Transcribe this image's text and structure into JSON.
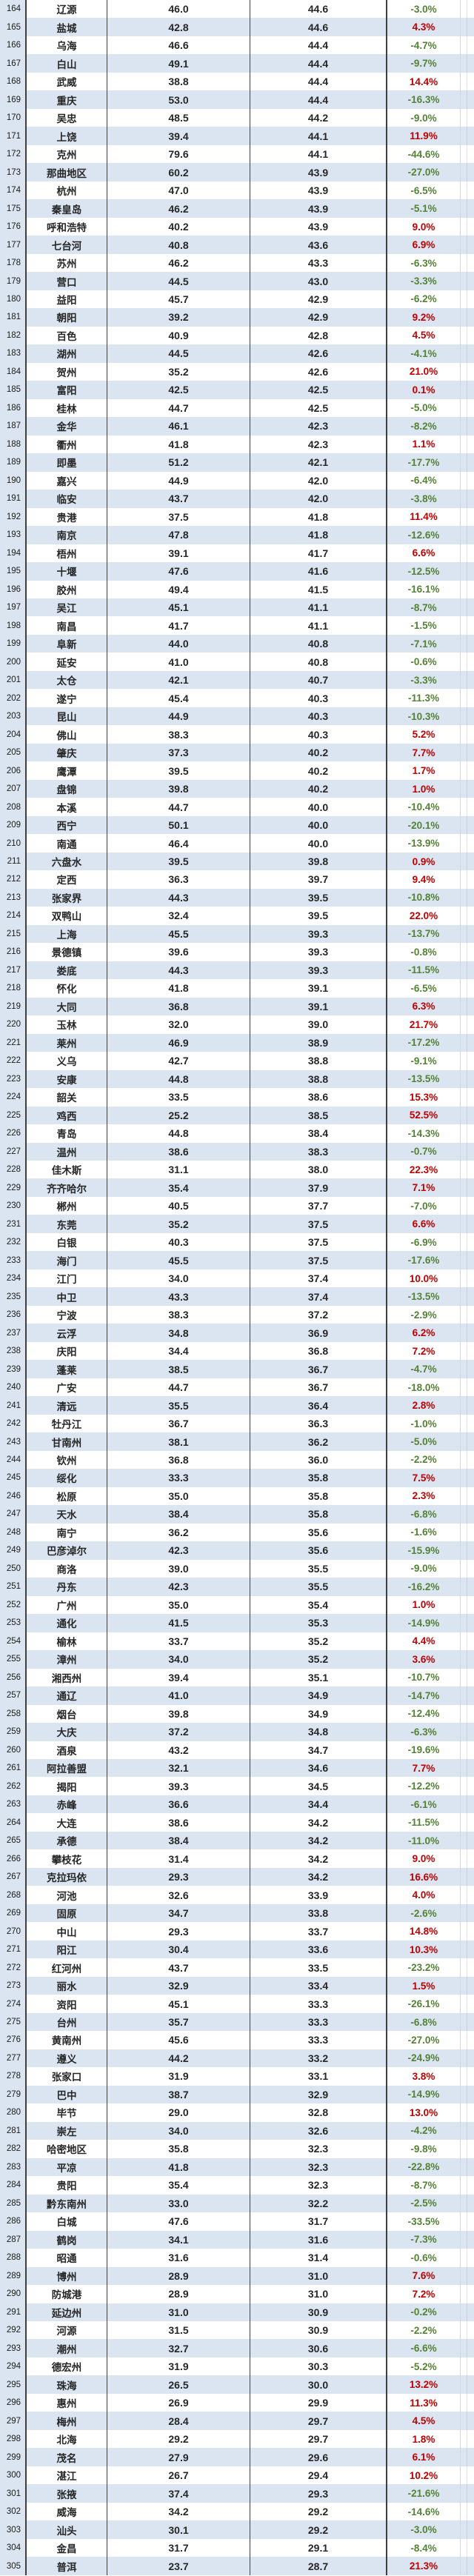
{
  "table": {
    "description_fields": [
      "rank",
      "city",
      "value_current",
      "value_baseline",
      "change_pct"
    ],
    "colors": {
      "band_blue": "#dbe5f1",
      "row_white": "#ffffff",
      "positive_change_red": "#c00000",
      "negative_change_green": "#548235",
      "column_border_dark": "#3f3f3f",
      "text_dark": "#262626"
    },
    "rows": [
      [
        164,
        "辽源",
        "46.0",
        "44.6",
        "-3.0%"
      ],
      [
        165,
        "盐城",
        "42.8",
        "44.6",
        "4.3%"
      ],
      [
        166,
        "乌海",
        "46.6",
        "44.4",
        "-4.7%"
      ],
      [
        167,
        "白山",
        "49.1",
        "44.4",
        "-9.7%"
      ],
      [
        168,
        "武威",
        "38.8",
        "44.4",
        "14.4%"
      ],
      [
        169,
        "重庆",
        "53.0",
        "44.4",
        "-16.3%"
      ],
      [
        170,
        "吴忠",
        "48.5",
        "44.2",
        "-9.0%"
      ],
      [
        171,
        "上饶",
        "39.4",
        "44.1",
        "11.9%"
      ],
      [
        172,
        "克州",
        "79.6",
        "44.1",
        "-44.6%"
      ],
      [
        173,
        "那曲地区",
        "60.2",
        "43.9",
        "-27.0%"
      ],
      [
        174,
        "杭州",
        "47.0",
        "43.9",
        "-6.5%"
      ],
      [
        175,
        "秦皇岛",
        "46.2",
        "43.9",
        "-5.1%"
      ],
      [
        176,
        "呼和浩特",
        "40.2",
        "43.9",
        "9.0%"
      ],
      [
        177,
        "七台河",
        "40.8",
        "43.6",
        "6.9%"
      ],
      [
        178,
        "苏州",
        "46.2",
        "43.3",
        "-6.3%"
      ],
      [
        179,
        "营口",
        "44.5",
        "43.0",
        "-3.3%"
      ],
      [
        180,
        "益阳",
        "45.7",
        "42.9",
        "-6.2%"
      ],
      [
        181,
        "朝阳",
        "39.2",
        "42.9",
        "9.2%"
      ],
      [
        182,
        "百色",
        "40.9",
        "42.8",
        "4.5%"
      ],
      [
        183,
        "湖州",
        "44.5",
        "42.6",
        "-4.1%"
      ],
      [
        184,
        "贺州",
        "35.2",
        "42.6",
        "21.0%"
      ],
      [
        185,
        "富阳",
        "42.5",
        "42.5",
        "0.1%"
      ],
      [
        186,
        "桂林",
        "44.7",
        "42.5",
        "-5.0%"
      ],
      [
        187,
        "金华",
        "46.1",
        "42.3",
        "-8.2%"
      ],
      [
        188,
        "衢州",
        "41.8",
        "42.3",
        "1.1%"
      ],
      [
        189,
        "即墨",
        "51.2",
        "42.1",
        "-17.7%"
      ],
      [
        190,
        "嘉兴",
        "44.9",
        "42.0",
        "-6.4%"
      ],
      [
        191,
        "临安",
        "43.7",
        "42.0",
        "-3.8%"
      ],
      [
        192,
        "贵港",
        "37.5",
        "41.8",
        "11.4%"
      ],
      [
        193,
        "南京",
        "47.8",
        "41.8",
        "-12.6%"
      ],
      [
        194,
        "梧州",
        "39.1",
        "41.7",
        "6.6%"
      ],
      [
        195,
        "十堰",
        "47.6",
        "41.6",
        "-12.5%"
      ],
      [
        196,
        "胶州",
        "49.4",
        "41.5",
        "-16.1%"
      ],
      [
        197,
        "吴江",
        "45.1",
        "41.1",
        "-8.7%"
      ],
      [
        198,
        "南昌",
        "41.7",
        "41.1",
        "-1.5%"
      ],
      [
        199,
        "阜新",
        "44.0",
        "40.8",
        "-7.1%"
      ],
      [
        200,
        "延安",
        "41.0",
        "40.8",
        "-0.6%"
      ],
      [
        201,
        "太仓",
        "42.1",
        "40.7",
        "-3.3%"
      ],
      [
        202,
        "遂宁",
        "45.4",
        "40.3",
        "-11.3%"
      ],
      [
        203,
        "昆山",
        "44.9",
        "40.3",
        "-10.3%"
      ],
      [
        204,
        "佛山",
        "38.3",
        "40.3",
        "5.2%"
      ],
      [
        205,
        "肇庆",
        "37.3",
        "40.2",
        "7.7%"
      ],
      [
        206,
        "鹰潭",
        "39.5",
        "40.2",
        "1.7%"
      ],
      [
        207,
        "盘锦",
        "39.8",
        "40.2",
        "1.0%"
      ],
      [
        208,
        "本溪",
        "44.7",
        "40.0",
        "-10.4%"
      ],
      [
        209,
        "西宁",
        "50.1",
        "40.0",
        "-20.1%"
      ],
      [
        210,
        "南通",
        "46.4",
        "40.0",
        "-13.9%"
      ],
      [
        211,
        "六盘水",
        "39.5",
        "39.8",
        "0.9%"
      ],
      [
        212,
        "定西",
        "36.3",
        "39.7",
        "9.4%"
      ],
      [
        213,
        "张家界",
        "44.3",
        "39.5",
        "-10.8%"
      ],
      [
        214,
        "双鸭山",
        "32.4",
        "39.5",
        "22.0%"
      ],
      [
        215,
        "上海",
        "45.5",
        "39.3",
        "-13.7%"
      ],
      [
        216,
        "景德镇",
        "39.6",
        "39.3",
        "-0.8%"
      ],
      [
        217,
        "娄底",
        "44.3",
        "39.3",
        "-11.5%"
      ],
      [
        218,
        "怀化",
        "41.8",
        "39.1",
        "-6.5%"
      ],
      [
        219,
        "大同",
        "36.8",
        "39.1",
        "6.3%"
      ],
      [
        220,
        "玉林",
        "32.0",
        "39.0",
        "21.7%"
      ],
      [
        221,
        "莱州",
        "46.9",
        "38.9",
        "-17.2%"
      ],
      [
        222,
        "义乌",
        "42.7",
        "38.8",
        "-9.1%"
      ],
      [
        223,
        "安康",
        "44.8",
        "38.8",
        "-13.5%"
      ],
      [
        224,
        "韶关",
        "33.5",
        "38.6",
        "15.3%"
      ],
      [
        225,
        "鸡西",
        "25.2",
        "38.5",
        "52.5%"
      ],
      [
        226,
        "青岛",
        "44.8",
        "38.4",
        "-14.3%"
      ],
      [
        227,
        "温州",
        "38.6",
        "38.3",
        "-0.7%"
      ],
      [
        228,
        "佳木斯",
        "31.1",
        "38.0",
        "22.3%"
      ],
      [
        229,
        "齐齐哈尔",
        "35.4",
        "37.9",
        "7.1%"
      ],
      [
        230,
        "郴州",
        "40.5",
        "37.7",
        "-7.0%"
      ],
      [
        231,
        "东莞",
        "35.2",
        "37.5",
        "6.6%"
      ],
      [
        232,
        "白银",
        "40.3",
        "37.5",
        "-6.9%"
      ],
      [
        233,
        "海门",
        "45.5",
        "37.5",
        "-17.6%"
      ],
      [
        234,
        "江门",
        "34.0",
        "37.4",
        "10.0%"
      ],
      [
        235,
        "中卫",
        "43.3",
        "37.4",
        "-13.5%"
      ],
      [
        236,
        "宁波",
        "38.3",
        "37.2",
        "-2.9%"
      ],
      [
        237,
        "云浮",
        "34.8",
        "36.9",
        "6.2%"
      ],
      [
        238,
        "庆阳",
        "34.4",
        "36.8",
        "7.2%"
      ],
      [
        239,
        "蓬莱",
        "38.5",
        "36.7",
        "-4.7%"
      ],
      [
        240,
        "广安",
        "44.7",
        "36.7",
        "-18.0%"
      ],
      [
        241,
        "清远",
        "35.5",
        "36.4",
        "2.8%"
      ],
      [
        242,
        "牡丹江",
        "36.7",
        "36.3",
        "-1.0%"
      ],
      [
        243,
        "甘南州",
        "38.1",
        "36.2",
        "-5.0%"
      ],
      [
        244,
        "钦州",
        "36.8",
        "36.0",
        "-2.2%"
      ],
      [
        245,
        "绥化",
        "33.3",
        "35.8",
        "7.5%"
      ],
      [
        246,
        "松原",
        "35.0",
        "35.8",
        "2.3%"
      ],
      [
        247,
        "天水",
        "38.4",
        "35.8",
        "-6.8%"
      ],
      [
        248,
        "南宁",
        "36.2",
        "35.6",
        "-1.6%"
      ],
      [
        249,
        "巴彦淖尔",
        "42.3",
        "35.6",
        "-15.9%"
      ],
      [
        250,
        "商洛",
        "39.0",
        "35.5",
        "-9.0%"
      ],
      [
        251,
        "丹东",
        "42.3",
        "35.5",
        "-16.2%"
      ],
      [
        252,
        "广州",
        "35.0",
        "35.4",
        "1.0%"
      ],
      [
        253,
        "通化",
        "41.5",
        "35.3",
        "-14.9%"
      ],
      [
        254,
        "榆林",
        "33.7",
        "35.2",
        "4.4%"
      ],
      [
        255,
        "漳州",
        "34.0",
        "35.2",
        "3.6%"
      ],
      [
        256,
        "湘西州",
        "39.4",
        "35.1",
        "-10.7%"
      ],
      [
        257,
        "通辽",
        "41.0",
        "34.9",
        "-14.7%"
      ],
      [
        258,
        "烟台",
        "39.8",
        "34.9",
        "-12.4%"
      ],
      [
        259,
        "大庆",
        "37.2",
        "34.8",
        "-6.3%"
      ],
      [
        260,
        "酒泉",
        "43.2",
        "34.7",
        "-19.6%"
      ],
      [
        261,
        "阿拉善盟",
        "32.1",
        "34.6",
        "7.7%"
      ],
      [
        262,
        "揭阳",
        "39.3",
        "34.5",
        "-12.2%"
      ],
      [
        263,
        "赤峰",
        "36.6",
        "34.4",
        "-6.1%"
      ],
      [
        264,
        "大连",
        "38.6",
        "34.2",
        "-11.5%"
      ],
      [
        265,
        "承德",
        "38.4",
        "34.2",
        "-11.0%"
      ],
      [
        266,
        "攀枝花",
        "31.4",
        "34.2",
        "9.0%"
      ],
      [
        267,
        "克拉玛依",
        "29.3",
        "34.2",
        "16.6%"
      ],
      [
        268,
        "河池",
        "32.6",
        "33.9",
        "4.0%"
      ],
      [
        269,
        "固原",
        "34.7",
        "33.8",
        "-2.6%"
      ],
      [
        270,
        "中山",
        "29.3",
        "33.7",
        "14.8%"
      ],
      [
        271,
        "阳江",
        "30.4",
        "33.6",
        "10.3%"
      ],
      [
        272,
        "红河州",
        "43.7",
        "33.5",
        "-23.2%"
      ],
      [
        273,
        "丽水",
        "32.9",
        "33.4",
        "1.5%"
      ],
      [
        274,
        "资阳",
        "45.1",
        "33.3",
        "-26.1%"
      ],
      [
        275,
        "台州",
        "35.7",
        "33.3",
        "-6.8%"
      ],
      [
        276,
        "黄南州",
        "45.6",
        "33.3",
        "-27.0%"
      ],
      [
        277,
        "遵义",
        "44.2",
        "33.2",
        "-24.9%"
      ],
      [
        278,
        "张家口",
        "31.9",
        "33.1",
        "3.8%"
      ],
      [
        279,
        "巴中",
        "38.7",
        "32.9",
        "-14.9%"
      ],
      [
        280,
        "毕节",
        "29.0",
        "32.8",
        "13.0%"
      ],
      [
        281,
        "崇左",
        "34.0",
        "32.6",
        "-4.2%"
      ],
      [
        282,
        "哈密地区",
        "35.8",
        "32.3",
        "-9.8%"
      ],
      [
        283,
        "平凉",
        "41.8",
        "32.3",
        "-22.8%"
      ],
      [
        284,
        "贵阳",
        "35.4",
        "32.3",
        "-8.7%"
      ],
      [
        285,
        "黔东南州",
        "33.0",
        "32.2",
        "-2.5%"
      ],
      [
        286,
        "白城",
        "47.6",
        "31.7",
        "-33.5%"
      ],
      [
        287,
        "鹤岗",
        "34.1",
        "31.6",
        "-7.3%"
      ],
      [
        288,
        "昭通",
        "31.6",
        "31.4",
        "-0.6%"
      ],
      [
        289,
        "博州",
        "28.9",
        "31.0",
        "7.6%"
      ],
      [
        290,
        "防城港",
        "28.9",
        "31.0",
        "7.2%"
      ],
      [
        291,
        "延边州",
        "31.0",
        "30.9",
        "-0.2%"
      ],
      [
        292,
        "河源",
        "31.5",
        "30.9",
        "-2.2%"
      ],
      [
        293,
        "潮州",
        "32.7",
        "30.6",
        "-6.6%"
      ],
      [
        294,
        "德宏州",
        "31.9",
        "30.3",
        "-5.2%"
      ],
      [
        295,
        "珠海",
        "26.5",
        "30.0",
        "13.2%"
      ],
      [
        296,
        "惠州",
        "26.9",
        "29.9",
        "11.3%"
      ],
      [
        297,
        "梅州",
        "28.4",
        "29.7",
        "4.5%"
      ],
      [
        298,
        "北海",
        "29.2",
        "29.7",
        "1.8%"
      ],
      [
        299,
        "茂名",
        "27.9",
        "29.6",
        "6.1%"
      ],
      [
        300,
        "湛江",
        "26.7",
        "29.4",
        "10.2%"
      ],
      [
        301,
        "张掖",
        "37.4",
        "29.3",
        "-21.6%"
      ],
      [
        302,
        "威海",
        "34.2",
        "29.2",
        "-14.6%"
      ],
      [
        303,
        "汕头",
        "30.1",
        "29.2",
        "-3.0%"
      ],
      [
        304,
        "金昌",
        "31.7",
        "29.1",
        "-8.4%"
      ],
      [
        305,
        "普洱",
        "23.7",
        "28.7",
        "21.3%"
      ]
    ]
  }
}
